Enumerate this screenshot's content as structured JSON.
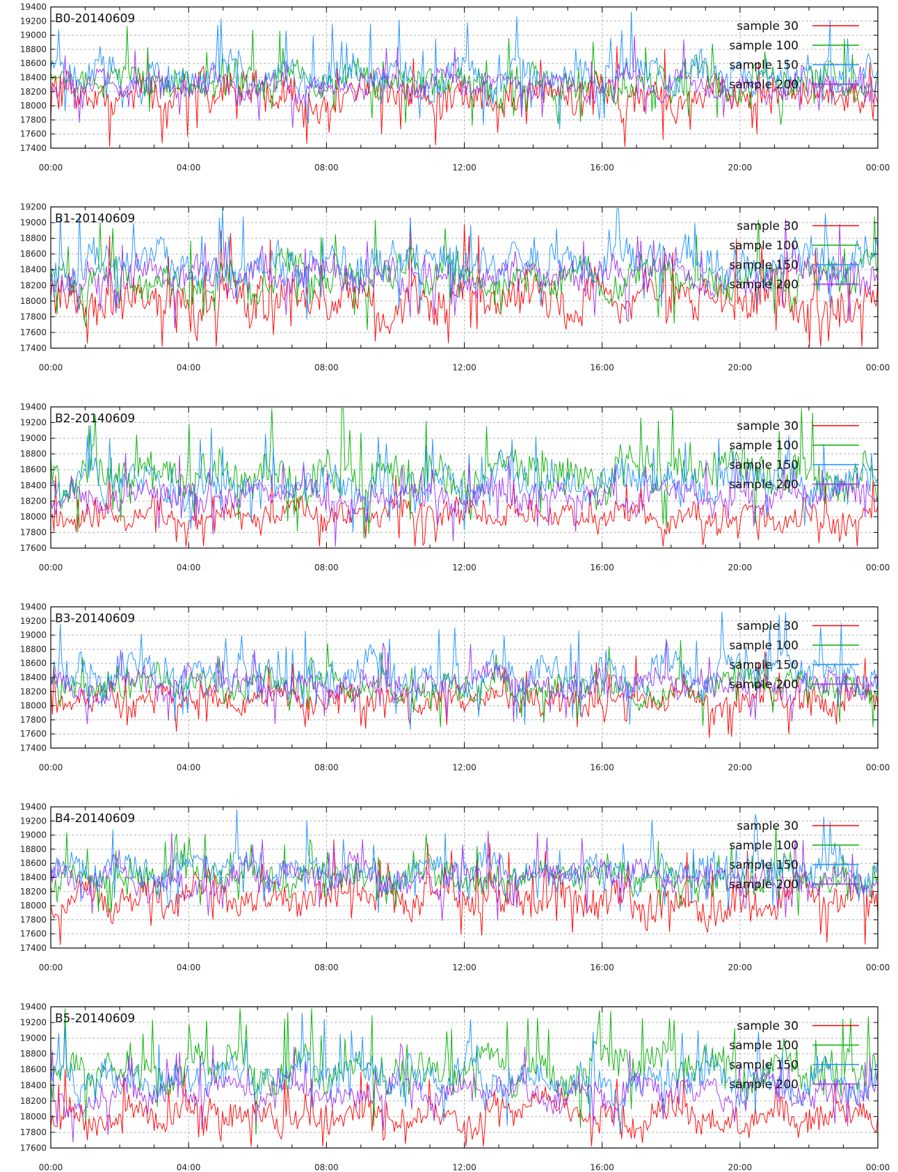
{
  "chart_data": [
    {
      "type": "line",
      "title": "B0-20140609",
      "ylim": [
        17400,
        19400
      ],
      "yticks": [
        17400,
        17600,
        17800,
        18000,
        18200,
        18400,
        18600,
        18800,
        19000,
        19200,
        19400
      ],
      "xticks": [
        "00:00",
        "04:00",
        "08:00",
        "12:00",
        "16:00",
        "20:00",
        "00:00"
      ],
      "grid": true,
      "legend": "top-right",
      "series": [
        {
          "name": "sample 30",
          "color": "#ff0000",
          "base": 18150,
          "amp": 420
        },
        {
          "name": "sample 100",
          "color": "#00b000",
          "base": 18330,
          "amp": 380
        },
        {
          "name": "sample 150",
          "color": "#1e90ff",
          "base": 18420,
          "amp": 420
        },
        {
          "name": "sample 200",
          "color": "#a030f0",
          "base": 18300,
          "amp": 300
        }
      ]
    },
    {
      "type": "line",
      "title": "B1-20140609",
      "ylim": [
        17400,
        19200
      ],
      "yticks": [
        17400,
        17600,
        17800,
        18000,
        18200,
        18400,
        18600,
        18800,
        19000,
        19200
      ],
      "xticks": [
        "00:00",
        "04:00",
        "08:00",
        "12:00",
        "16:00",
        "20:00",
        "00:00"
      ],
      "grid": true,
      "legend": "top-right",
      "series": [
        {
          "name": "sample 30",
          "color": "#ff0000",
          "base": 18050,
          "amp": 480
        },
        {
          "name": "sample 100",
          "color": "#00b000",
          "base": 18300,
          "amp": 380
        },
        {
          "name": "sample 150",
          "color": "#1e90ff",
          "base": 18500,
          "amp": 420
        },
        {
          "name": "sample 200",
          "color": "#a030f0",
          "base": 18300,
          "amp": 360
        }
      ]
    },
    {
      "type": "line",
      "title": "B2-20140609",
      "ylim": [
        17600,
        19400
      ],
      "yticks": [
        17600,
        17800,
        18000,
        18200,
        18400,
        18600,
        18800,
        19000,
        19200,
        19400
      ],
      "xticks": [
        "00:00",
        "04:00",
        "08:00",
        "12:00",
        "16:00",
        "20:00",
        "00:00"
      ],
      "grid": true,
      "legend": "top-right",
      "series": [
        {
          "name": "sample 30",
          "color": "#ff0000",
          "base": 18020,
          "amp": 300
        },
        {
          "name": "sample 100",
          "color": "#00b000",
          "base": 18550,
          "amp": 450
        },
        {
          "name": "sample 150",
          "color": "#1e90ff",
          "base": 18420,
          "amp": 360
        },
        {
          "name": "sample 200",
          "color": "#a030f0",
          "base": 18250,
          "amp": 300
        }
      ]
    },
    {
      "type": "line",
      "title": "B3-20140609",
      "ylim": [
        17400,
        19400
      ],
      "yticks": [
        17400,
        17600,
        17800,
        18000,
        18200,
        18400,
        18600,
        18800,
        19000,
        19200,
        19400
      ],
      "xticks": [
        "00:00",
        "04:00",
        "08:00",
        "12:00",
        "16:00",
        "20:00",
        "00:00"
      ],
      "grid": true,
      "legend": "top-right",
      "series": [
        {
          "name": "sample 30",
          "color": "#ff0000",
          "base": 18100,
          "amp": 320
        },
        {
          "name": "sample 100",
          "color": "#00b000",
          "base": 18300,
          "amp": 320
        },
        {
          "name": "sample 150",
          "color": "#1e90ff",
          "base": 18450,
          "amp": 420
        },
        {
          "name": "sample 200",
          "color": "#a030f0",
          "base": 18300,
          "amp": 320
        }
      ]
    },
    {
      "type": "line",
      "title": "B4-20140609",
      "ylim": [
        17400,
        19400
      ],
      "yticks": [
        17400,
        17600,
        17800,
        18000,
        18200,
        18400,
        18600,
        18800,
        19000,
        19200,
        19400
      ],
      "xticks": [
        "00:00",
        "04:00",
        "08:00",
        "12:00",
        "16:00",
        "20:00",
        "00:00"
      ],
      "grid": true,
      "legend": "top-right",
      "series": [
        {
          "name": "sample 30",
          "color": "#ff0000",
          "base": 18100,
          "amp": 420
        },
        {
          "name": "sample 100",
          "color": "#00b000",
          "base": 18400,
          "amp": 340
        },
        {
          "name": "sample 150",
          "color": "#1e90ff",
          "base": 18500,
          "amp": 380
        },
        {
          "name": "sample 200",
          "color": "#a030f0",
          "base": 18400,
          "amp": 340
        }
      ]
    },
    {
      "type": "line",
      "title": "B5-20140609",
      "ylim": [
        17600,
        19400
      ],
      "yticks": [
        17600,
        17800,
        18000,
        18200,
        18400,
        18600,
        18800,
        19000,
        19200,
        19400
      ],
      "xticks": [
        "00:00",
        "04:00",
        "08:00",
        "12:00",
        "16:00",
        "20:00",
        "00:00"
      ],
      "grid": true,
      "legend": "top-right",
      "series": [
        {
          "name": "sample 30",
          "color": "#ff0000",
          "base": 18000,
          "amp": 320
        },
        {
          "name": "sample 100",
          "color": "#00b000",
          "base": 18600,
          "amp": 420
        },
        {
          "name": "sample 150",
          "color": "#1e90ff",
          "base": 18480,
          "amp": 360
        },
        {
          "name": "sample 200",
          "color": "#a030f0",
          "base": 18300,
          "amp": 300
        }
      ]
    }
  ]
}
